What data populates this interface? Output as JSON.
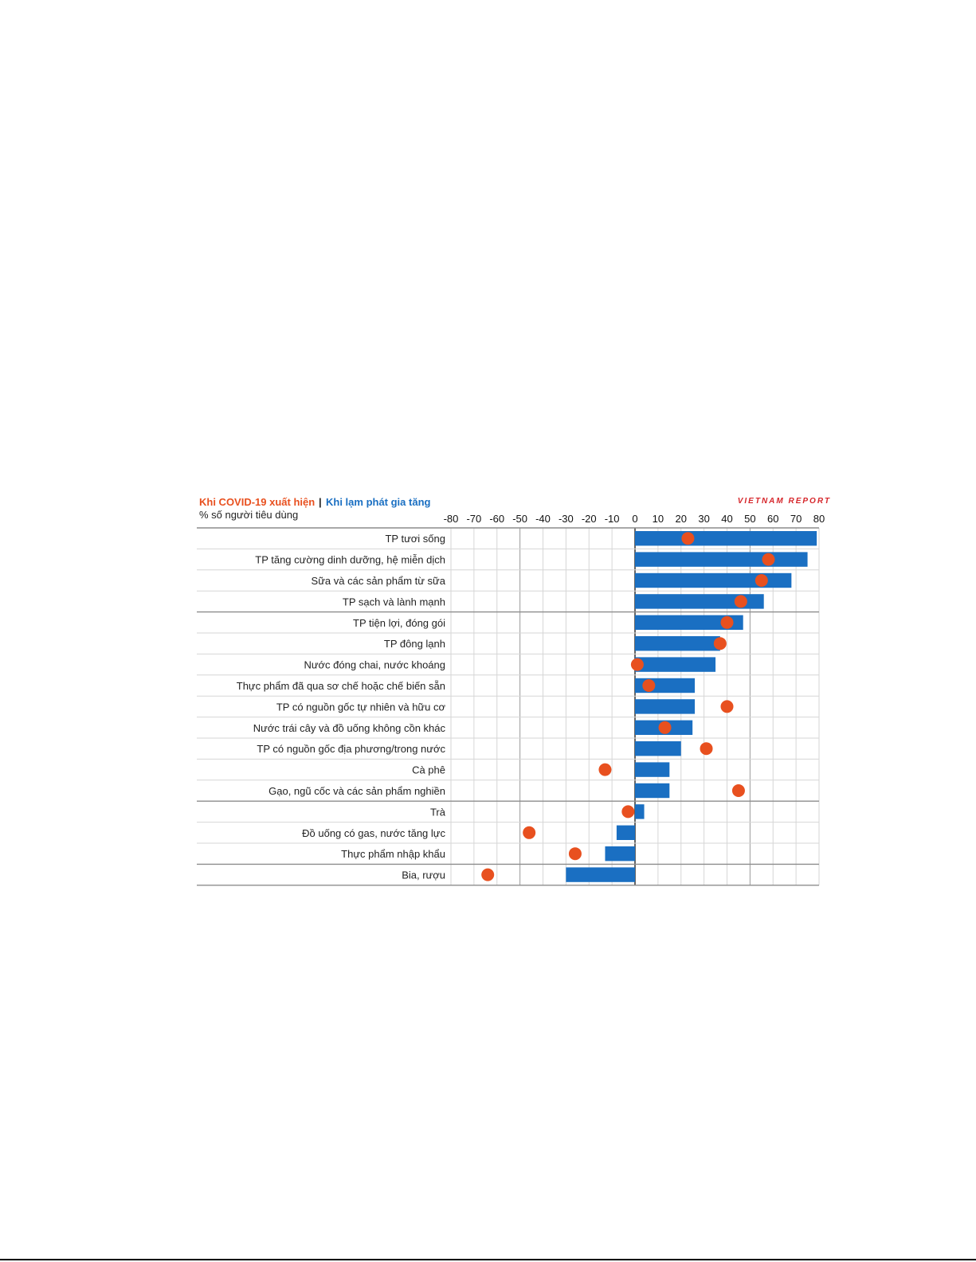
{
  "chart_data": {
    "type": "bar",
    "legend": {
      "covid_label": "Khi COVID-19 xuất hiện",
      "separator": "|",
      "inflation_label": "Khi lạm phát gia tăng"
    },
    "subtitle": "% số người tiêu dùng",
    "brand": "VIETNAM REPORT",
    "xlim": [
      -80,
      80
    ],
    "x_ticks": [
      "-80",
      "-70",
      "-60",
      "-50",
      "-40",
      "-30",
      "-20",
      "-10",
      "0",
      "10",
      "20",
      "30",
      "40",
      "50",
      "60",
      "70",
      "80"
    ],
    "categories": [
      "TP tươi sống",
      "TP tăng cường dinh dưỡng, hệ miễn dịch",
      "Sữa và các sản phẩm từ sữa",
      "TP sạch và lành mạnh",
      "TP tiện lợi, đóng gói",
      "TP đông lạnh",
      "Nước đóng chai, nước khoáng",
      "Thực phẩm đã qua sơ chế hoặc chế biến sẵn",
      "TP có nguồn gốc tự nhiên và hữu cơ",
      "Nước trái cây và đồ uống không cồn khác",
      "TP có nguồn gốc địa phương/trong nước",
      "Cà phê",
      "Gạo, ngũ cốc và các sản phẩm nghiền",
      "Trà",
      "Đồ uống có gas, nước tăng lực",
      "Thực phẩm nhập khẩu",
      "Bia, rượu"
    ],
    "series": [
      {
        "name": "Khi lạm phát gia tăng",
        "mark": "bar",
        "color": "#1a6fc2",
        "values": [
          79,
          75,
          68,
          56,
          47,
          37,
          35,
          26,
          26,
          25,
          20,
          15,
          15,
          4,
          -8,
          -13,
          -30
        ]
      },
      {
        "name": "Khi COVID-19 xuất hiện",
        "mark": "dot",
        "color": "#e8501f",
        "values": [
          23,
          58,
          55,
          46,
          40,
          37,
          1,
          6,
          40,
          13,
          31,
          -13,
          45,
          -3,
          -46,
          -26,
          -64
        ]
      }
    ],
    "group_dividers_after": [
      3,
      12,
      15
    ],
    "grid": true
  }
}
